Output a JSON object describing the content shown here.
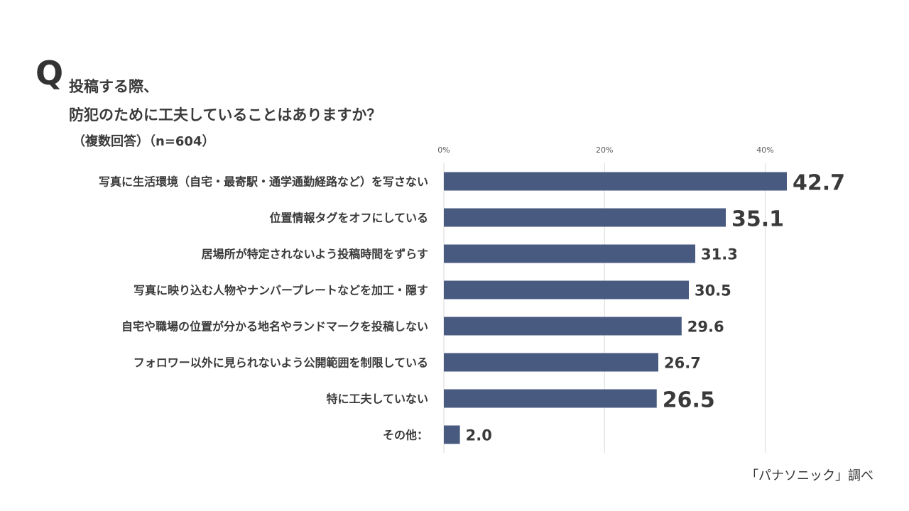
{
  "question": {
    "mark": "Q",
    "line1": "投稿する際、",
    "line2": "防犯のために工夫していることはありますか？",
    "note": "（複数回答）（n=604）"
  },
  "source": "「パナソニック」調べ",
  "colors": {
    "bar": "#485a80",
    "grid": "#d9d9d9",
    "text": "#3a3a3a"
  },
  "chart_data": {
    "type": "bar",
    "orientation": "horizontal",
    "categories": [
      "写真に生活環境（自宅・最寄駅・通学通勤経路など）を写さない",
      "位置情報タグをオフにしている",
      "居場所が特定されないよう投稿時間をずらす",
      "写真に映り込む人物やナンバープレートなどを加工・隠す",
      "自宅や職場の位置が分かる地名やランドマークを投稿しない",
      "フォロワー以外に見られないよう公開範囲を制限している",
      "特に工夫していない",
      "その他："
    ],
    "values": [
      42.7,
      35.1,
      31.3,
      30.5,
      29.6,
      26.7,
      26.5,
      2.0
    ],
    "value_labels": [
      "42.7",
      "35.1",
      "31.3",
      "30.5",
      "29.6",
      "26.7",
      "26.5",
      "2.0"
    ],
    "emphasized": [
      true,
      true,
      false,
      false,
      false,
      false,
      true,
      false
    ],
    "xlim": [
      0,
      45
    ],
    "xticks": [
      0,
      20,
      40
    ],
    "xtick_labels": [
      "0%",
      "20%",
      "40%"
    ],
    "grid": true,
    "legend": "none"
  }
}
